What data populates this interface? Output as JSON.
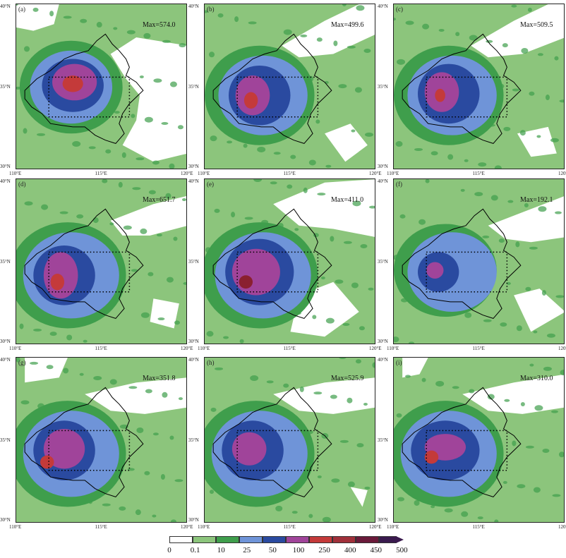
{
  "panels": [
    {
      "label": "(a)",
      "max": "Max=574.0"
    },
    {
      "label": "(b)",
      "max": "Max=499.6"
    },
    {
      "label": "(c)",
      "max": "Max=509.5"
    },
    {
      "label": "(d)",
      "max": "Max=651.7"
    },
    {
      "label": "(e)",
      "max": "Max=411.0"
    },
    {
      "label": "(f)",
      "max": "Max=192.1"
    },
    {
      "label": "(g)",
      "max": "Max=351.8"
    },
    {
      "label": "(h)",
      "max": "Max=525.9"
    },
    {
      "label": "(i)",
      "max": "Max=310.0"
    }
  ],
  "axes": {
    "y_ticks": [
      "40°N",
      "35°N",
      "30°N"
    ],
    "x_ticks": [
      "110°E",
      "115°E",
      "120°E"
    ]
  },
  "colorbar": {
    "labels": [
      "0",
      "0.1",
      "10",
      "25",
      "50",
      "100",
      "250",
      "400",
      "450",
      "500"
    ],
    "colors": [
      "#ffffff",
      "#8cc57c",
      "#3f9e4c",
      "#6f94d8",
      "#2a4aa0",
      "#a0449a",
      "#c43a3a",
      "#a0303a",
      "#6a1a3a",
      "#3a1a4e"
    ]
  },
  "colors": {
    "white_region": "#ffffff",
    "light_green": "#8cc57c",
    "dark_green": "#3f9e4c",
    "light_blue": "#6f94d8",
    "dark_blue": "#2a4aa0",
    "magenta": "#a0449a",
    "red": "#c43a3a",
    "dark_red": "#8a2030"
  }
}
